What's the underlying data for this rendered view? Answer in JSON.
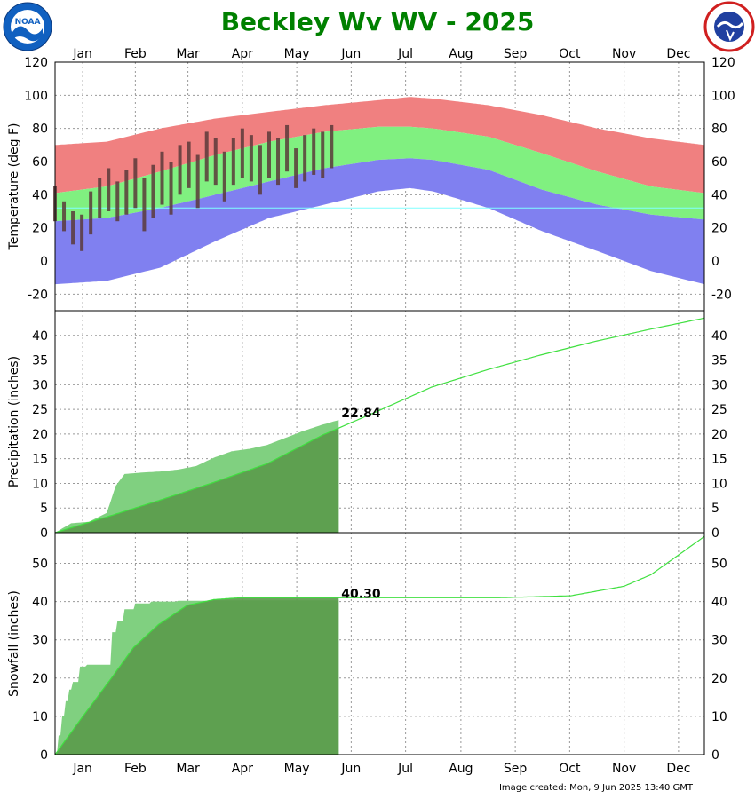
{
  "title": "Beckley Wv WV - 2025",
  "logos": {
    "left": {
      "text": "NOAA",
      "icon": "noaa-logo-icon"
    },
    "right": {
      "text": "NATIONAL WEATHER SERVICE",
      "icon": "nws-logo-icon"
    }
  },
  "months": [
    "Jan",
    "Feb",
    "Mar",
    "Apr",
    "May",
    "Jun",
    "Jul",
    "Aug",
    "Sep",
    "Oct",
    "Nov",
    "Dec"
  ],
  "colors": {
    "record_high": "#f08080",
    "normal": "#80f080",
    "record_low": "#8080f0",
    "observed": "#5a3a3a",
    "precip_observed": "#80d080",
    "precip_normal_fill": "#5a9a4a",
    "normal_line": "#40e040",
    "title": "#008000",
    "freezing": "#80ffff"
  },
  "footer": "Image created: Mon, 9 Jun 2025 13:40 GMT",
  "chart_data": [
    {
      "type": "area",
      "name": "temperature",
      "ylabel": "Temperature (deg F)",
      "ylim": [
        -30,
        120
      ],
      "yticks": [
        -20,
        0,
        20,
        40,
        60,
        80,
        100,
        120
      ],
      "grid": true,
      "x_unit": "day of year",
      "normal_high": {
        "x": [
          1,
          30,
          60,
          91,
          121,
          152,
          182,
          200,
          213,
          244,
          274,
          305,
          335,
          365
        ],
        "y": [
          41,
          45,
          54,
          64,
          72,
          78,
          81,
          81,
          80,
          75,
          65,
          54,
          45,
          41
        ]
      },
      "normal_low": {
        "x": [
          1,
          30,
          60,
          91,
          121,
          152,
          182,
          200,
          213,
          244,
          274,
          305,
          335,
          365
        ],
        "y": [
          24,
          26,
          32,
          40,
          48,
          56,
          61,
          62,
          61,
          55,
          43,
          34,
          28,
          25
        ]
      },
      "record_high": {
        "x": [
          1,
          30,
          60,
          91,
          121,
          152,
          182,
          200,
          213,
          244,
          274,
          305,
          335,
          365
        ],
        "y": [
          70,
          72,
          80,
          86,
          90,
          94,
          97,
          99,
          98,
          94,
          88,
          80,
          74,
          70
        ]
      },
      "record_low": {
        "x": [
          1,
          30,
          60,
          91,
          121,
          152,
          182,
          200,
          213,
          244,
          274,
          305,
          335,
          365
        ],
        "y": [
          -14,
          -12,
          -4,
          12,
          26,
          34,
          42,
          44,
          42,
          32,
          18,
          6,
          -6,
          -14
        ]
      },
      "observed": {
        "x": [
          1,
          6,
          11,
          16,
          21,
          26,
          31,
          36,
          41,
          46,
          51,
          56,
          61,
          66,
          71,
          76,
          81,
          86,
          91,
          96,
          101,
          106,
          111,
          116,
          121,
          126,
          131,
          136,
          141,
          146,
          151,
          156
        ],
        "high": [
          45,
          36,
          30,
          28,
          42,
          50,
          56,
          48,
          55,
          62,
          50,
          58,
          66,
          60,
          70,
          72,
          64,
          78,
          74,
          66,
          74,
          80,
          76,
          70,
          78,
          74,
          82,
          68,
          76,
          80,
          78,
          82
        ],
        "low": [
          24,
          18,
          10,
          6,
          16,
          26,
          30,
          24,
          28,
          32,
          18,
          26,
          34,
          28,
          40,
          44,
          32,
          48,
          46,
          36,
          46,
          50,
          48,
          40,
          50,
          46,
          54,
          44,
          48,
          52,
          50,
          56
        ]
      },
      "freezing_line": 32
    },
    {
      "type": "area",
      "name": "precipitation",
      "ylabel": "Precipitation (inches)",
      "ylim": [
        0,
        45
      ],
      "yticks": [
        0,
        5,
        10,
        15,
        20,
        25,
        30,
        35,
        40
      ],
      "grid": true,
      "annotation": "22.84",
      "observed_cumulative": {
        "x": [
          1,
          10,
          20,
          30,
          35,
          40,
          50,
          60,
          70,
          80,
          90,
          100,
          110,
          120,
          130,
          140,
          150,
          160
        ],
        "y": [
          0,
          1.9,
          2.2,
          4.0,
          9.5,
          11.9,
          12.2,
          12.4,
          12.8,
          13.5,
          15.2,
          16.5,
          17.0,
          17.8,
          19.2,
          20.6,
          21.8,
          22.84
        ]
      },
      "normal_cumulative": {
        "x": [
          1,
          31,
          59,
          90,
          120,
          151,
          181,
          212,
          243,
          273,
          304,
          334,
          365
        ],
        "y": [
          0,
          3.3,
          6.5,
          10.2,
          14.0,
          19.8,
          24.5,
          29.5,
          33.0,
          36.0,
          38.8,
          41.2,
          43.5
        ]
      }
    },
    {
      "type": "area",
      "name": "snowfall",
      "ylabel": "Snowfall (inches)",
      "ylim": [
        0,
        58
      ],
      "yticks": [
        0,
        10,
        20,
        30,
        40,
        50
      ],
      "grid": true,
      "annotation": "40.30",
      "observed_cumulative": {
        "x": [
          1,
          3,
          5,
          7,
          9,
          11,
          15,
          19,
          23,
          27,
          31,
          33,
          36,
          40,
          46,
          55,
          70,
          90,
          110,
          160
        ],
        "y": [
          0,
          5,
          10,
          14,
          17,
          19,
          23,
          23.5,
          23.5,
          23.5,
          23.5,
          32,
          35,
          38,
          39.5,
          40,
          40.2,
          40.3,
          40.3,
          40.3
        ]
      },
      "normal_cumulative": {
        "x": [
          1,
          15,
          31,
          45,
          59,
          75,
          90,
          105,
          120,
          150,
          200,
          250,
          290,
          320,
          335,
          350,
          365
        ],
        "y": [
          0,
          9,
          19,
          28,
          34,
          39,
          40.5,
          41,
          41,
          41,
          41,
          41,
          41.5,
          44,
          47,
          52,
          57
        ]
      }
    }
  ]
}
